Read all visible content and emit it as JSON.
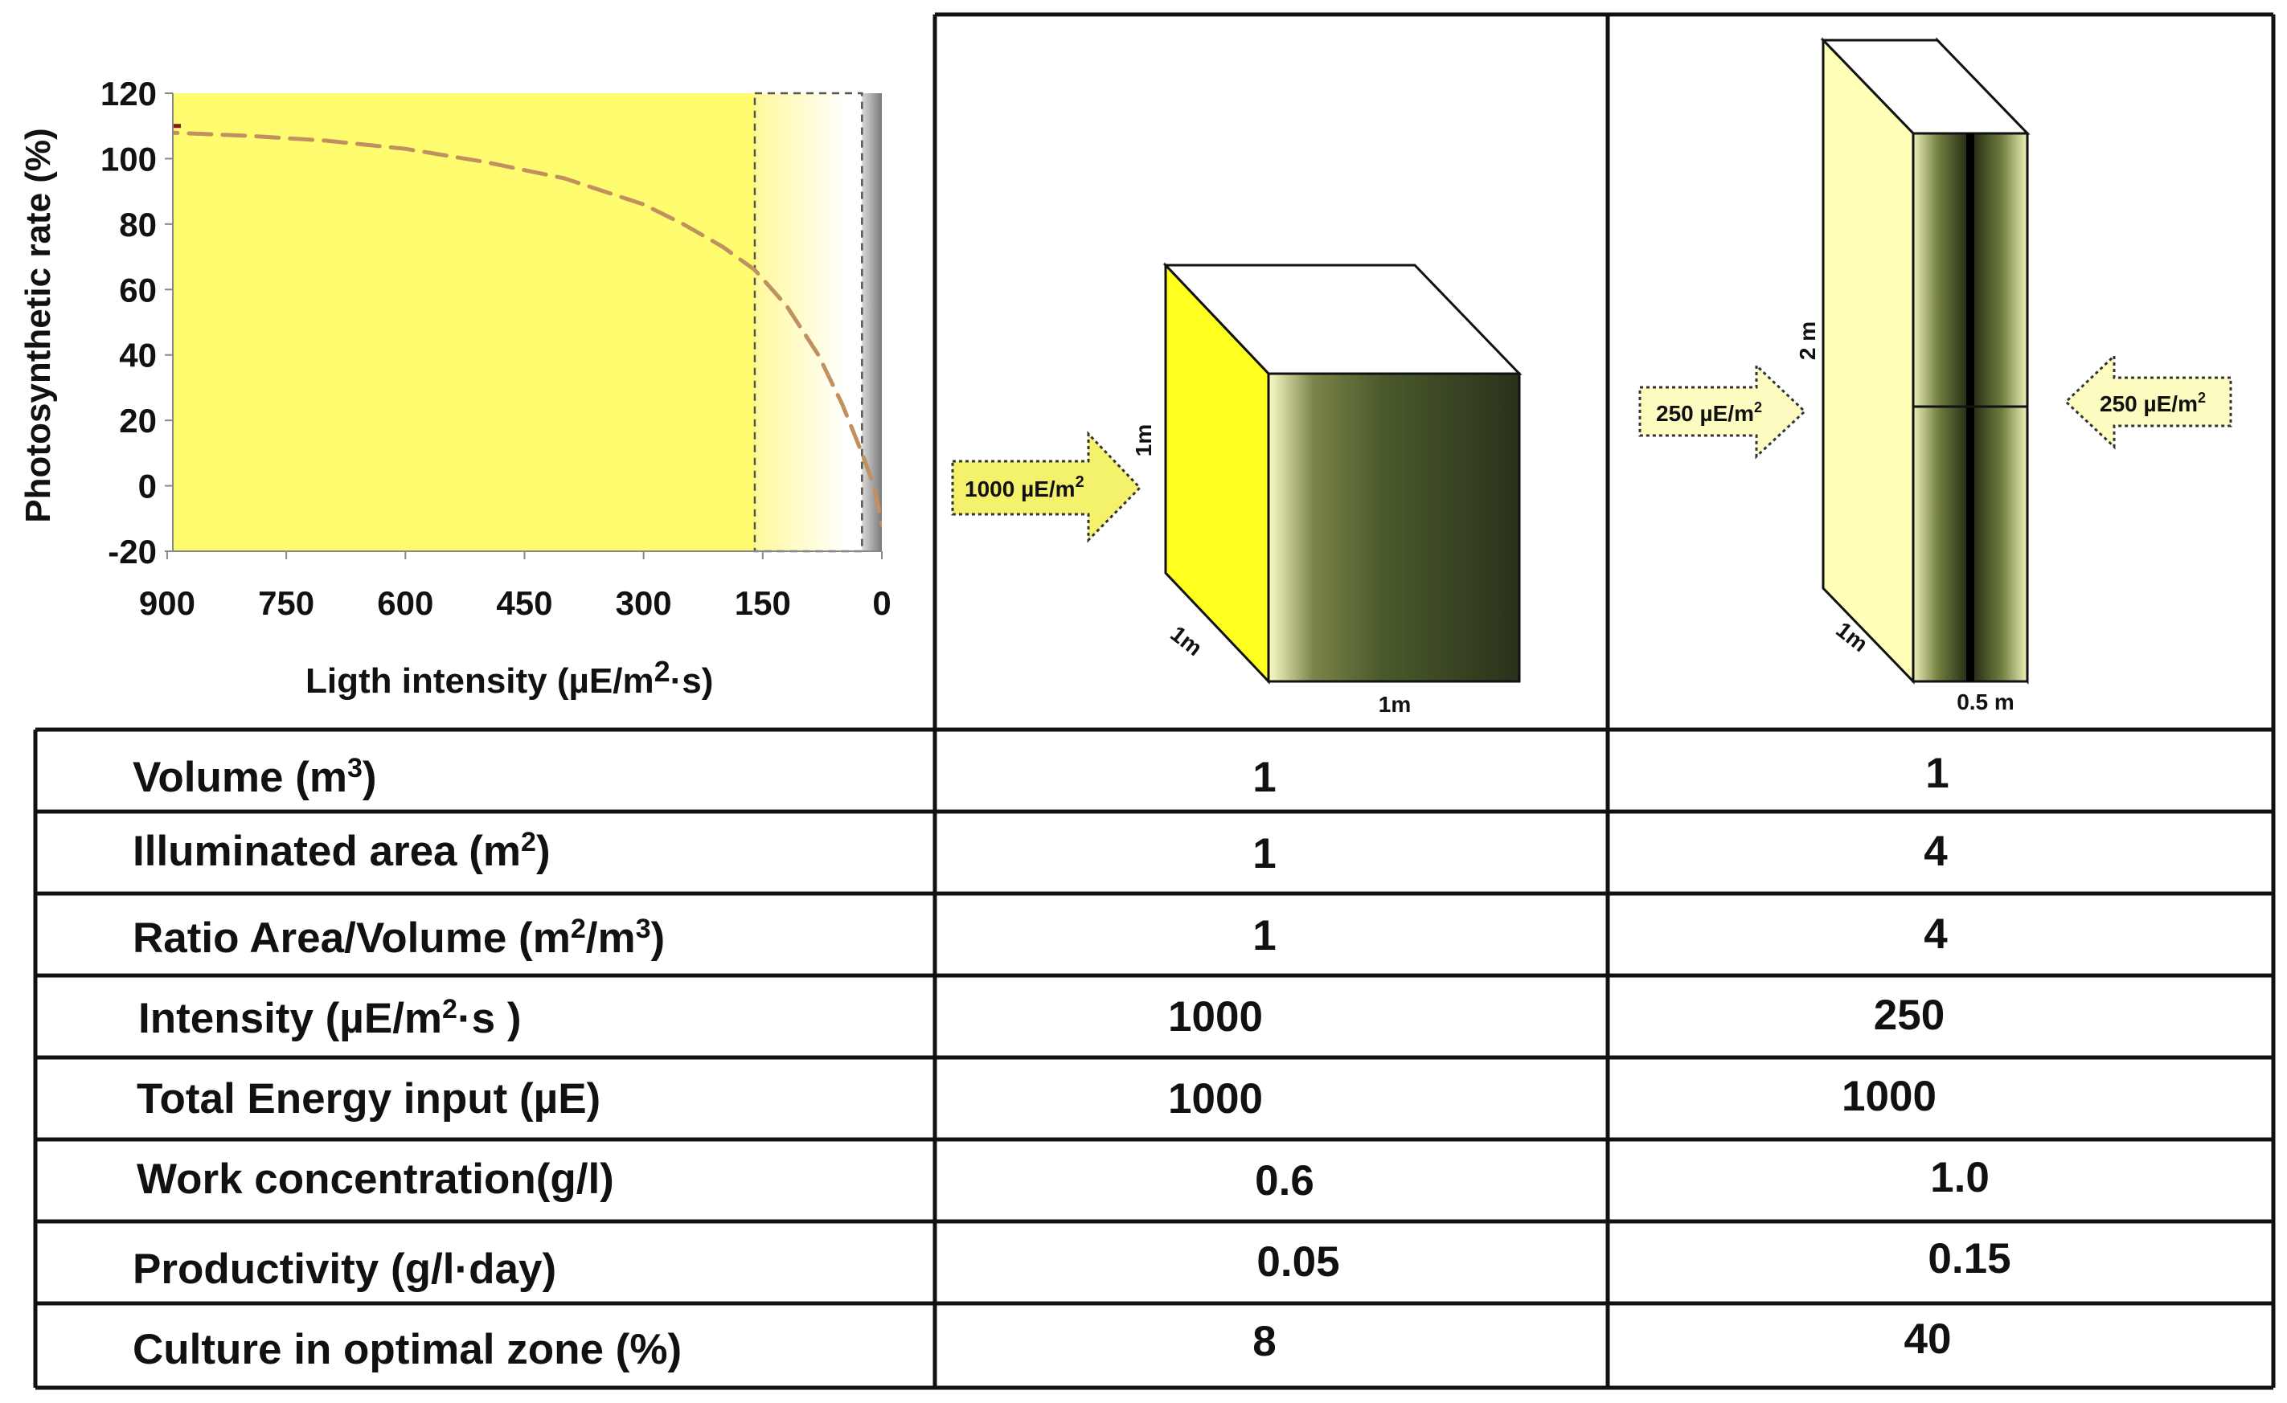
{
  "chart_data": {
    "type": "line",
    "xlabel": "Ligth intensity (µE/m2·s)",
    "xlabel_main": "Ligth intensity (µE/m",
    "xlabel_sup": "2",
    "xlabel_end": "·s)",
    "ylabel": "Photosynthetic rate (%)",
    "x_reversed": true,
    "xlim": [
      0,
      1000
    ],
    "ylim": [
      -20,
      120
    ],
    "xticks": [
      900,
      750,
      600,
      450,
      300,
      150,
      0
    ],
    "xtick_labels": [
      "900",
      "750",
      "600",
      "450",
      "300",
      "150",
      "0"
    ],
    "yticks": [
      120,
      100,
      80,
      60,
      40,
      20,
      0,
      -20
    ],
    "ytick_labels": [
      "120",
      "100",
      "80",
      "60",
      "40",
      "20",
      "0",
      "-20"
    ],
    "series": [
      {
        "x": [
          1000,
          900,
          800,
          700,
          600,
          500,
          400,
          300,
          250,
          200,
          160,
          120,
          80,
          50,
          25,
          10,
          0
        ],
        "y": [
          110,
          108,
          107,
          105.5,
          103,
          99,
          94,
          86,
          80,
          73,
          66,
          55,
          40,
          25,
          10,
          0,
          -12
        ],
        "color": "#c09060",
        "style": "dashed"
      }
    ],
    "shaded_zone": {
      "x_from": 160,
      "x_to": 25
    }
  },
  "colors": {
    "plot_bg": "#fffc70",
    "curve": "#c09060",
    "dark_green": "#27301a",
    "light_yellow": "#ffffb8",
    "bright_yellow": "#ffff20",
    "arrow_fill": "#f4f26c",
    "light_arrow_fill": "#fcfbc0"
  },
  "diagram1": {
    "arrow_label": "1000 µE/m",
    "arrow_sup": "2",
    "dim_height": "1m",
    "dim_depth": "1m",
    "dim_width": "1m"
  },
  "diagram2": {
    "left_arrow_label": "250 µE/m",
    "left_arrow_sup": "2",
    "right_arrow_label": "250 µE/m",
    "right_arrow_sup": "2",
    "dim_height": "2 m",
    "dim_depth": "1m",
    "dim_width": "0.5 m"
  },
  "table": {
    "rows": [
      {
        "label": "Volume (m",
        "sup": "3",
        "label_end": ")",
        "col1": "1",
        "col2": "1"
      },
      {
        "label": "Illuminated area (m",
        "sup": "2",
        "label_end": ")",
        "col1": "1",
        "col2": "4"
      },
      {
        "label": "Ratio Area/Volume (m",
        "sup": "2",
        "label_mid": "/m",
        "sup2": "3",
        "label_end": ")",
        "col1": "1",
        "col2": "4"
      },
      {
        "label": "Intensity (µE/m",
        "sup": "2",
        "label_end": "·s )",
        "col1": "1000",
        "col2": "250"
      },
      {
        "label": "Total Energy input (µE)",
        "col1": "1000",
        "col2": "1000"
      },
      {
        "label": "Work concentration(g/l)",
        "col1": "0.6",
        "col2": "1.0"
      },
      {
        "label": "Productivity (g/l·day)",
        "col1": "0.05",
        "col2": "0.15"
      },
      {
        "label": "Culture in optimal zone (%)",
        "col1": "8",
        "col2": "40"
      }
    ]
  }
}
